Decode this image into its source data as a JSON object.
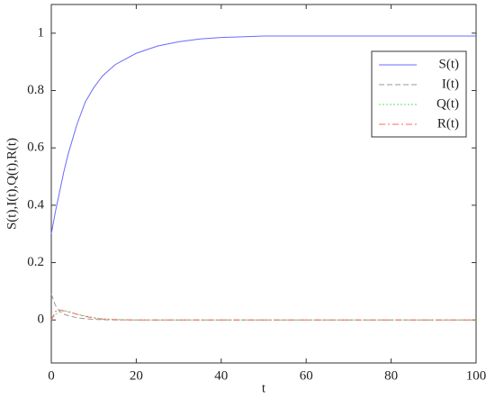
{
  "chart_data": {
    "type": "line",
    "x_label": "t",
    "y_label": "S(t),I(t),Q(t),R(t)",
    "x": [
      0,
      1,
      2,
      3,
      4,
      6,
      8,
      10,
      12,
      15,
      20,
      25,
      30,
      35,
      40,
      50,
      60,
      80,
      100
    ],
    "series": [
      {
        "name": "S(t)",
        "color": "#6b6bff",
        "style": "solid",
        "values": [
          0.3,
          0.38,
          0.45,
          0.52,
          0.58,
          0.68,
          0.76,
          0.81,
          0.85,
          0.89,
          0.93,
          0.955,
          0.97,
          0.98,
          0.985,
          0.99,
          0.99,
          0.99,
          0.99
        ]
      },
      {
        "name": "I(t)",
        "color": "#9a9a9a",
        "style": "dashed",
        "values": [
          0.09,
          0.05,
          0.03,
          0.02,
          0.015,
          0.008,
          0.004,
          0.002,
          0.001,
          0,
          0,
          0,
          0,
          0,
          0,
          0,
          0,
          0,
          0
        ]
      },
      {
        "name": "Q(t)",
        "color": "#66dd66",
        "style": "dotted",
        "values": [
          0,
          0.02,
          0.03,
          0.032,
          0.03,
          0.02,
          0.014,
          0.008,
          0.004,
          0.002,
          0,
          0,
          0,
          0,
          0,
          0,
          0,
          0,
          0
        ]
      },
      {
        "name": "R(t)",
        "color": "#ff6666",
        "style": "dashdot",
        "values": [
          0,
          0.03,
          0.035,
          0.032,
          0.028,
          0.02,
          0.012,
          0.007,
          0.003,
          0.001,
          0,
          0,
          0,
          0,
          0,
          0,
          0,
          0,
          0
        ]
      }
    ],
    "xlim": [
      0,
      100
    ],
    "xticks": [
      0,
      20,
      40,
      60,
      80,
      100
    ],
    "ylim": [
      -0.15,
      1.1
    ],
    "yticks": [
      0,
      0.2,
      0.4,
      0.6,
      0.8,
      1
    ],
    "grid": false,
    "legend": "upper right"
  }
}
